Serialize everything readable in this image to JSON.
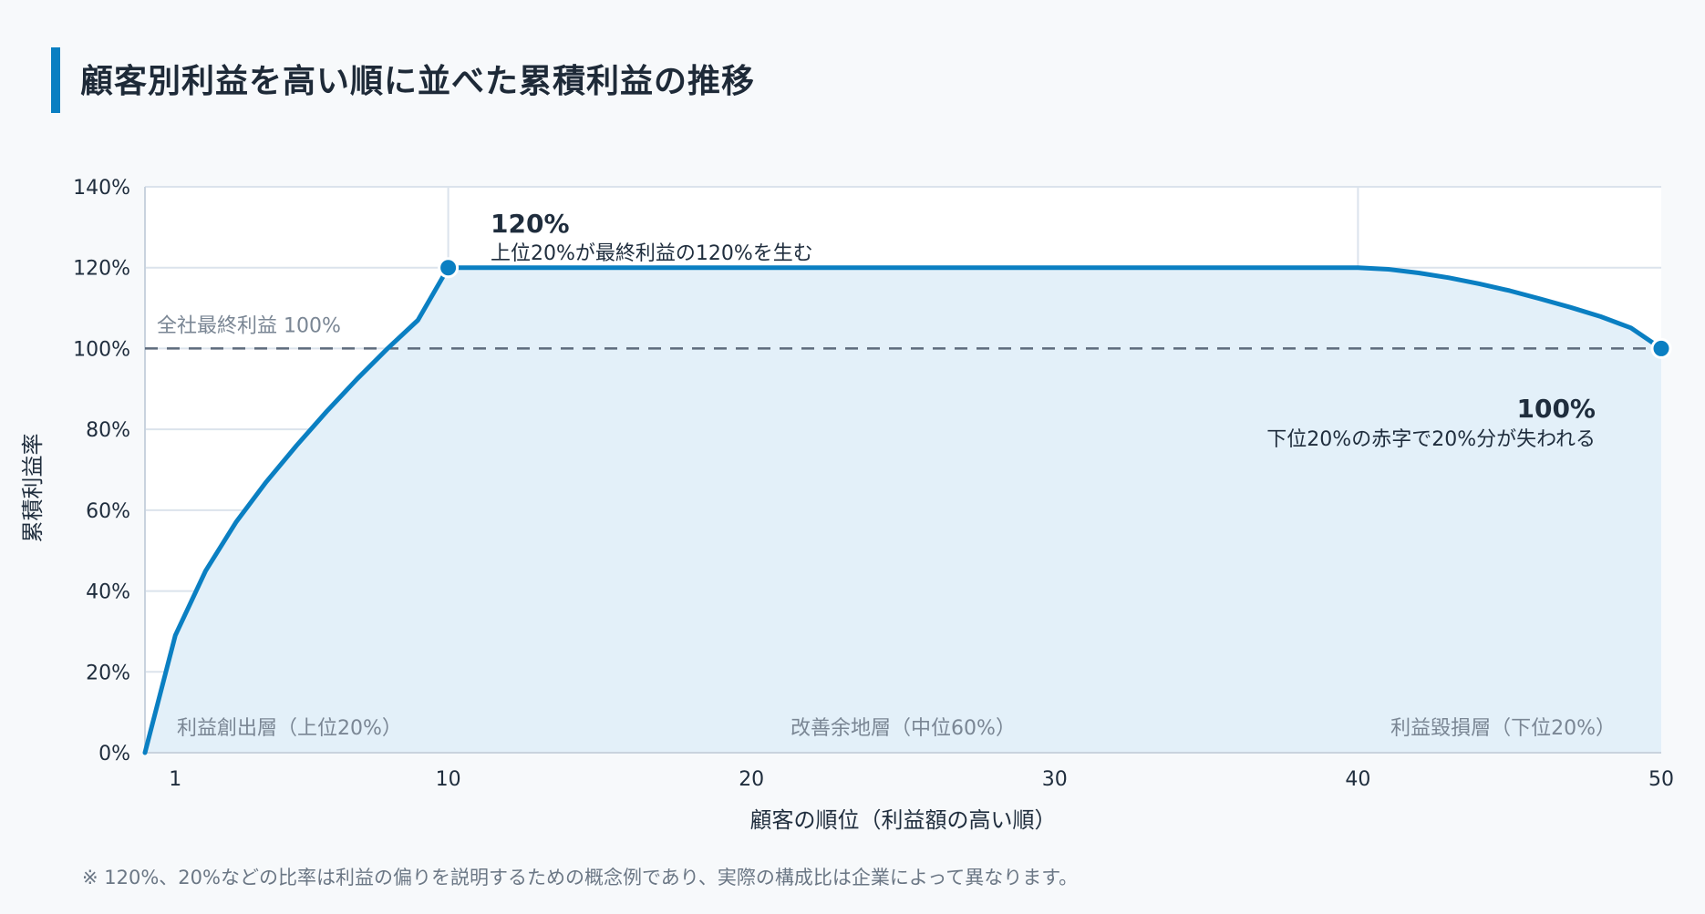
{
  "title": "顧客別利益を高い順に並べた累積利益の推移",
  "footnote": "※ 120%、20%などの比率は利益の偏りを説明するための概念例であり、実際の構成比は企業によって異なります。",
  "colors": {
    "accent": "#0a7fc2",
    "fill": "#e3f0f9",
    "grid": "#dbe3ec",
    "reference": "#5d6b7c",
    "text": "#1f2d3d",
    "muted": "#7a8694"
  },
  "chart_data": {
    "type": "area",
    "xlabel": "顧客の順位（利益額の高い順）",
    "ylabel": "累積利益率",
    "xlim": [
      0,
      50
    ],
    "ylim": [
      0,
      140
    ],
    "x_ticks": [
      1,
      10,
      20,
      30,
      40,
      50
    ],
    "y_ticks": [
      0,
      20,
      40,
      60,
      80,
      100,
      120,
      140
    ],
    "y_tick_labels": [
      "0%",
      "20%",
      "40%",
      "60%",
      "80%",
      "100%",
      "120%",
      "140%"
    ],
    "grid": true,
    "series": [
      {
        "x": [
          0,
          1,
          2,
          3,
          4,
          5,
          6,
          7,
          8,
          9,
          10,
          15,
          20,
          25,
          30,
          35,
          40,
          41,
          42,
          43,
          44,
          45,
          46,
          47,
          48,
          49,
          50
        ],
        "y": [
          0,
          29,
          45,
          57,
          67,
          76,
          84.5,
          92.5,
          100,
          107,
          120,
          120,
          120,
          120,
          120,
          120,
          120,
          119.6,
          118.7,
          117.5,
          116,
          114.3,
          112.3,
          110.2,
          107.9,
          105.1,
          100
        ]
      }
    ],
    "reference_line": {
      "y": 100,
      "label": "全社最終利益 100%"
    },
    "vertical_markers": [
      10,
      40
    ],
    "highlight_points": [
      {
        "x": 10,
        "y": 120,
        "value": "120%",
        "text": "上位20%が最終利益の120%を生む"
      },
      {
        "x": 50,
        "y": 100,
        "value": "100%",
        "text": "下位20%の赤字で20%分が失われる"
      }
    ],
    "regions": [
      {
        "label": "利益創出層（上位20%）"
      },
      {
        "label": "改善余地層（中位60%）"
      },
      {
        "label": "利益毀損層（下位20%）"
      }
    ]
  }
}
